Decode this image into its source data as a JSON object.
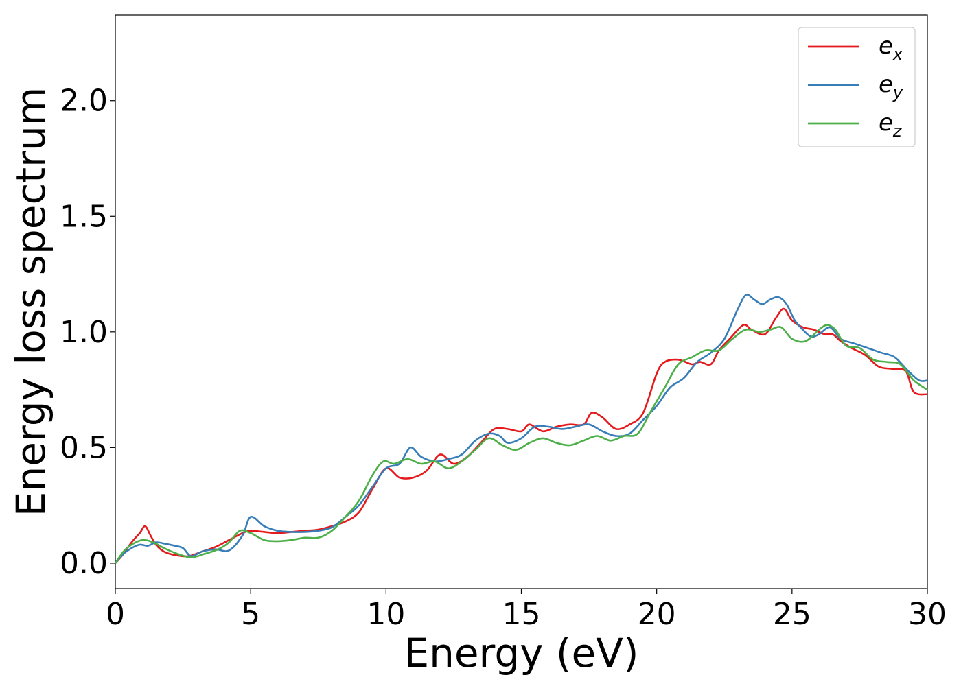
{
  "chart_data": {
    "type": "line",
    "xlabel": "Energy (eV)",
    "ylabel": "Energy loss spectrum",
    "xlim": [
      0,
      30
    ],
    "ylim": [
      -0.11,
      2.37
    ],
    "xticks": [
      0,
      5,
      10,
      15,
      20,
      25,
      30
    ],
    "xtick_labels": [
      "0",
      "5",
      "10",
      "15",
      "20",
      "25",
      "30"
    ],
    "yticks": [
      0.0,
      0.5,
      1.0,
      1.5,
      2.0
    ],
    "ytick_labels": [
      "0.0",
      "0.5",
      "1.0",
      "1.5",
      "2.0"
    ],
    "grid": false,
    "legend_position": "top-right",
    "series": [
      {
        "name": "e",
        "subscript": "x",
        "color": "#e41a1c",
        "x": [
          0,
          0.3,
          0.6,
          0.9,
          1.1,
          1.3,
          1.5,
          1.8,
          2.2,
          2.7,
          3.2,
          3.7,
          4.2,
          4.7,
          5.0,
          5.5,
          6.0,
          6.5,
          7.0,
          7.5,
          8.0,
          8.5,
          9.0,
          9.5,
          10.0,
          10.5,
          11.0,
          11.5,
          12.0,
          12.5,
          13.0,
          13.5,
          14.0,
          14.5,
          15.0,
          15.3,
          15.8,
          16.3,
          16.8,
          17.3,
          17.6,
          18.0,
          18.5,
          19.0,
          19.5,
          20.0,
          20.3,
          20.8,
          21.3,
          21.6,
          22.0,
          22.3,
          22.7,
          23.2,
          23.5,
          24.0,
          24.4,
          24.7,
          25.0,
          25.4,
          25.8,
          26.2,
          26.5,
          26.8,
          27.2,
          27.7,
          28.2,
          28.7,
          29.2,
          29.5,
          30.0
        ],
        "values": [
          0.0,
          0.04,
          0.09,
          0.13,
          0.16,
          0.12,
          0.08,
          0.05,
          0.035,
          0.03,
          0.05,
          0.07,
          0.1,
          0.13,
          0.14,
          0.135,
          0.13,
          0.135,
          0.14,
          0.145,
          0.16,
          0.18,
          0.22,
          0.32,
          0.41,
          0.37,
          0.37,
          0.4,
          0.47,
          0.43,
          0.46,
          0.52,
          0.58,
          0.58,
          0.57,
          0.6,
          0.57,
          0.59,
          0.6,
          0.6,
          0.65,
          0.63,
          0.58,
          0.6,
          0.65,
          0.82,
          0.87,
          0.88,
          0.86,
          0.87,
          0.86,
          0.92,
          0.97,
          1.03,
          1.01,
          0.99,
          1.06,
          1.1,
          1.05,
          1.02,
          1.01,
          0.99,
          0.99,
          0.96,
          0.93,
          0.9,
          0.85,
          0.84,
          0.83,
          0.74,
          0.73
        ]
      },
      {
        "name": "e",
        "subscript": "y",
        "color": "#377eb8",
        "x": [
          0,
          0.3,
          0.6,
          0.9,
          1.2,
          1.5,
          1.8,
          2.2,
          2.5,
          2.8,
          3.2,
          3.7,
          4.2,
          4.7,
          5.0,
          5.5,
          6.0,
          6.5,
          7.0,
          7.5,
          8.0,
          8.5,
          9.0,
          9.5,
          10.0,
          10.5,
          10.9,
          11.3,
          11.8,
          12.3,
          12.8,
          13.3,
          13.8,
          14.2,
          14.5,
          15.0,
          15.5,
          16.0,
          16.5,
          17.0,
          17.5,
          18.0,
          18.5,
          19.0,
          19.5,
          20.0,
          20.5,
          21.0,
          21.5,
          22.0,
          22.5,
          23.0,
          23.3,
          23.6,
          23.9,
          24.2,
          24.5,
          24.8,
          25.1,
          25.4,
          25.7,
          26.0,
          26.4,
          26.8,
          27.3,
          27.8,
          28.3,
          28.8,
          29.3,
          29.7,
          30.0
        ],
        "values": [
          0.0,
          0.04,
          0.065,
          0.08,
          0.075,
          0.09,
          0.085,
          0.075,
          0.065,
          0.03,
          0.05,
          0.06,
          0.055,
          0.12,
          0.2,
          0.16,
          0.14,
          0.135,
          0.135,
          0.14,
          0.155,
          0.2,
          0.25,
          0.33,
          0.41,
          0.43,
          0.5,
          0.46,
          0.44,
          0.45,
          0.47,
          0.53,
          0.56,
          0.55,
          0.52,
          0.54,
          0.59,
          0.59,
          0.58,
          0.59,
          0.6,
          0.57,
          0.55,
          0.56,
          0.62,
          0.68,
          0.76,
          0.8,
          0.87,
          0.91,
          0.97,
          1.1,
          1.16,
          1.14,
          1.12,
          1.14,
          1.15,
          1.12,
          1.05,
          1.01,
          0.98,
          0.99,
          1.02,
          0.97,
          0.95,
          0.93,
          0.91,
          0.89,
          0.83,
          0.79,
          0.79
        ]
      },
      {
        "name": "e",
        "subscript": "z",
        "color": "#4daf4a",
        "x": [
          0,
          0.3,
          0.6,
          1.0,
          1.4,
          1.8,
          2.3,
          2.8,
          3.3,
          3.8,
          4.2,
          4.6,
          5.0,
          5.5,
          6.0,
          6.5,
          7.0,
          7.5,
          8.0,
          8.5,
          9.0,
          9.5,
          9.9,
          10.3,
          10.8,
          11.3,
          11.8,
          12.3,
          12.8,
          13.3,
          13.8,
          14.3,
          14.8,
          15.3,
          15.8,
          16.3,
          16.8,
          17.3,
          17.8,
          18.3,
          18.8,
          19.3,
          19.8,
          20.3,
          20.8,
          21.3,
          21.8,
          22.3,
          22.8,
          23.3,
          23.8,
          24.2,
          24.6,
          25.0,
          25.5,
          26.0,
          26.3,
          26.6,
          27.0,
          27.5,
          28.0,
          28.5,
          29.0,
          29.5,
          30.0
        ],
        "values": [
          0.0,
          0.05,
          0.08,
          0.1,
          0.09,
          0.065,
          0.04,
          0.025,
          0.04,
          0.06,
          0.09,
          0.14,
          0.13,
          0.1,
          0.095,
          0.1,
          0.11,
          0.11,
          0.14,
          0.2,
          0.27,
          0.38,
          0.44,
          0.43,
          0.45,
          0.43,
          0.44,
          0.41,
          0.44,
          0.49,
          0.54,
          0.51,
          0.49,
          0.52,
          0.54,
          0.52,
          0.51,
          0.53,
          0.55,
          0.53,
          0.55,
          0.56,
          0.66,
          0.76,
          0.86,
          0.89,
          0.92,
          0.92,
          0.97,
          1.01,
          1.0,
          1.01,
          1.02,
          0.97,
          0.96,
          1.01,
          1.03,
          1.01,
          0.94,
          0.93,
          0.88,
          0.87,
          0.86,
          0.79,
          0.75
        ]
      }
    ]
  }
}
